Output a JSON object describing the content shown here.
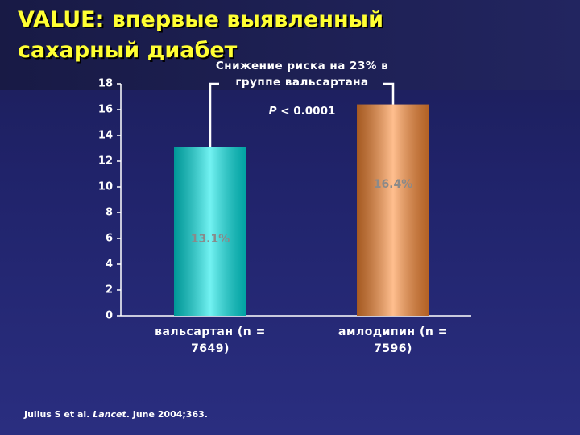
{
  "chart_data": {
    "type": "bar",
    "title": "VALUE: впервые выявленный сахарный диабет",
    "categories": [
      "вальсартан (n = 7649)",
      "амлодипин (n = 7596)"
    ],
    "series": [
      {
        "colors": [
          "#00e8e8",
          "#ff8a33"
        ],
        "values": [
          13.1,
          16.4
        ],
        "value_labels": [
          "13.1%",
          "16.4%"
        ]
      }
    ],
    "ylim": [
      0,
      18
    ],
    "yticks": [
      0,
      2,
      4,
      6,
      8,
      10,
      12,
      14,
      16,
      18
    ],
    "annotation": {
      "text": "Снижение риска на 23% в группе вальсартана",
      "p_symbol": "P",
      "p_value": "< 0.0001"
    },
    "citation": {
      "authors": "Julius S et al.",
      "journal": "Lancet",
      "details": ". June 2004;363."
    }
  }
}
